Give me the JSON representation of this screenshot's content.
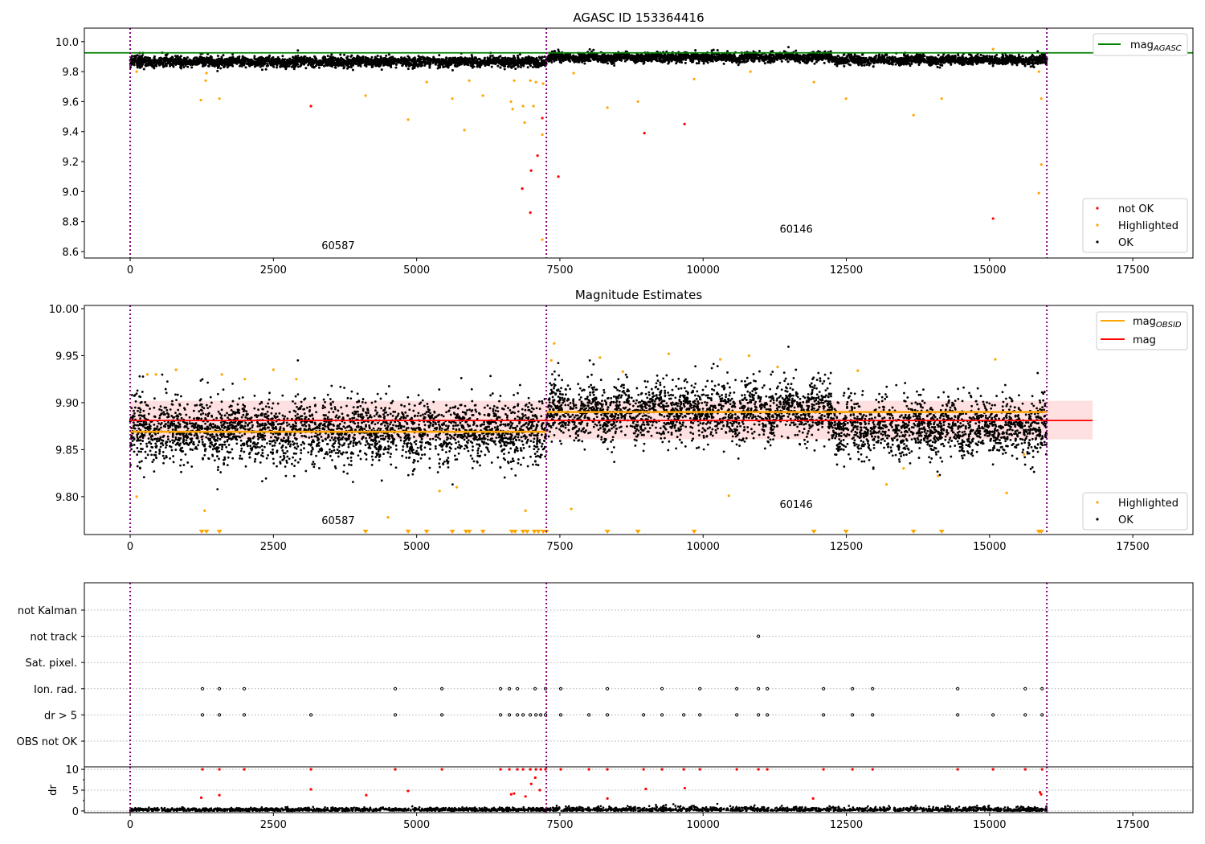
{
  "chart_data": [
    {
      "type": "scatter",
      "title": "AGASC ID 153364416",
      "xlim": [
        -800,
        18550
      ],
      "ylim": [
        8.557,
        10.09
      ],
      "xticks": [
        "0",
        "2500",
        "5000",
        "7500",
        "10000",
        "12500",
        "15000",
        "17500"
      ],
      "xtick_values": [
        0,
        2500,
        5000,
        7500,
        10000,
        12500,
        15000,
        17500
      ],
      "yticks": [
        "8.6",
        "8.8",
        "9.0",
        "9.2",
        "9.4",
        "9.6",
        "9.8",
        "10.0"
      ],
      "ytick_values": [
        8.6,
        8.8,
        9.0,
        9.2,
        9.4,
        9.6,
        9.8,
        10.0
      ],
      "mag_agasc": 9.925,
      "obsid_boundaries": [
        0,
        7264,
        16000
      ],
      "obsid_labels": [
        {
          "text": "60587",
          "x": 3630,
          "y": 8.615
        },
        {
          "text": "60146",
          "x": 11625,
          "y": 8.725
        }
      ],
      "legend_lines": [
        {
          "label": "mag",
          "sub": "AGASC",
          "color": "#008000"
        }
      ],
      "legend_points": [
        {
          "label": "not OK",
          "color": "#ff0000"
        },
        {
          "label": "Highlighted",
          "color": "#ffa500"
        },
        {
          "label": "OK",
          "color": "#000000"
        }
      ],
      "not_ok_points": [
        [
          3155,
          9.57
        ],
        [
          7194,
          9.49
        ],
        [
          7110,
          9.24
        ],
        [
          6998,
          9.14
        ],
        [
          6843,
          9.02
        ],
        [
          6984,
          8.86
        ],
        [
          7474,
          9.1
        ],
        [
          8975,
          9.39
        ],
        [
          9676,
          9.45
        ],
        [
          15061,
          8.82
        ]
      ],
      "highlighted_points": [
        [
          112,
          9.8
        ],
        [
          1234,
          9.61
        ],
        [
          1318,
          9.74
        ],
        [
          1332,
          9.79
        ],
        [
          1557,
          9.62
        ],
        [
          4109,
          9.64
        ],
        [
          4852,
          9.48
        ],
        [
          5175,
          9.73
        ],
        [
          5623,
          9.62
        ],
        [
          5833,
          9.41
        ],
        [
          5918,
          9.74
        ],
        [
          6156,
          9.64
        ],
        [
          6647,
          9.6
        ],
        [
          6675,
          9.55
        ],
        [
          6703,
          9.74
        ],
        [
          6857,
          9.57
        ],
        [
          6885,
          9.46
        ],
        [
          6984,
          9.74
        ],
        [
          7040,
          9.57
        ],
        [
          7082,
          9.73
        ],
        [
          7194,
          9.38
        ],
        [
          7194,
          8.68
        ],
        [
          7208,
          9.72
        ],
        [
          7740,
          9.79
        ],
        [
          8330,
          9.56
        ],
        [
          8863,
          9.6
        ],
        [
          9844,
          9.75
        ],
        [
          10826,
          9.8
        ],
        [
          11934,
          9.73
        ],
        [
          12495,
          9.62
        ],
        [
          13673,
          9.51
        ],
        [
          14164,
          9.62
        ],
        [
          15861,
          9.8
        ],
        [
          15903,
          9.62
        ],
        [
          15903,
          9.18
        ],
        [
          15861,
          8.99
        ],
        [
          15061,
          9.95
        ]
      ],
      "ok_segments": [
        {
          "x": [
            0,
            7264
          ],
          "mean": 9.865,
          "std": 0.018
        },
        {
          "x": [
            7264,
            12300
          ],
          "mean": 9.895,
          "std": 0.016
        },
        {
          "x": [
            12300,
            16000
          ],
          "mean": 9.877,
          "std": 0.016
        }
      ]
    },
    {
      "type": "scatter",
      "title": "Magnitude Estimates",
      "xlim": [
        -800,
        18550
      ],
      "ylim": [
        9.7597,
        10.0034
      ],
      "xticks": [
        "0",
        "2500",
        "5000",
        "7500",
        "10000",
        "12500",
        "15000",
        "17500"
      ],
      "xtick_values": [
        0,
        2500,
        5000,
        7500,
        10000,
        12500,
        15000,
        17500
      ],
      "yticks": [
        "9.80",
        "9.85",
        "9.90",
        "9.95",
        "10.00"
      ],
      "ytick_values": [
        9.8,
        9.85,
        9.9,
        9.95,
        10.0
      ],
      "mag": 9.881,
      "mag_band": [
        9.861,
        9.902
      ],
      "mag_range_x": [
        0,
        16800
      ],
      "mag_obsid": [
        {
          "x": [
            0,
            7264
          ],
          "value": 9.869
        },
        {
          "x": [
            7264,
            16000
          ],
          "value": 9.89
        }
      ],
      "obsid_labels": [
        {
          "text": "60587",
          "x": 3630,
          "y": 9.771
        },
        {
          "text": "60146",
          "x": 11625,
          "y": 9.788
        }
      ],
      "legend_lines": [
        {
          "label": "mag",
          "sub": "OBSID",
          "color": "#ffa500"
        },
        {
          "label": "mag",
          "sub": "",
          "color": "#ff0000"
        }
      ],
      "legend_points": [
        {
          "label": "Highlighted",
          "color": "#ffa500"
        },
        {
          "label": "OK",
          "color": "#000000"
        }
      ],
      "below_range_markers": [
        1248,
        1332,
        1557,
        4109,
        4852,
        5175,
        5623,
        5862,
        5918,
        6156,
        6661,
        6717,
        6857,
        6928,
        7054,
        7124,
        7208,
        7264,
        8330,
        8863,
        9844,
        11934,
        12495,
        13673,
        14164,
        15861,
        15903
      ],
      "highlighted_points": [
        [
          112,
          9.8
        ],
        [
          300,
          9.93
        ],
        [
          450,
          9.93
        ],
        [
          800,
          9.935
        ],
        [
          1300,
          9.785
        ],
        [
          1600,
          9.93
        ],
        [
          2000,
          9.925
        ],
        [
          2500,
          9.935
        ],
        [
          2900,
          9.925
        ],
        [
          4500,
          9.778
        ],
        [
          5400,
          9.806
        ],
        [
          5700,
          9.81
        ],
        [
          6900,
          9.785
        ],
        [
          7350,
          9.945
        ],
        [
          7400,
          9.963
        ],
        [
          7700,
          9.787
        ],
        [
          8200,
          9.948
        ],
        [
          8600,
          9.933
        ],
        [
          9400,
          9.952
        ],
        [
          10300,
          9.946
        ],
        [
          10450,
          9.801
        ],
        [
          10800,
          9.95
        ],
        [
          11300,
          9.938
        ],
        [
          12700,
          9.934
        ],
        [
          13200,
          9.813
        ],
        [
          13500,
          9.83
        ],
        [
          14100,
          9.822
        ],
        [
          15100,
          9.946
        ],
        [
          15300,
          9.804
        ],
        [
          15600,
          9.845
        ]
      ]
    },
    {
      "type": "scatter",
      "xlim": [
        -800,
        18550
      ],
      "categories": [
        "OBS not OK",
        "dr > 5",
        "Ion. rad.",
        "Sat. pixel.",
        "not track",
        "not Kalman"
      ],
      "flag_points": {
        "not track": [
          10966
        ],
        "Ion. rad.": [
          1262,
          1557,
          1991,
          4627,
          5441,
          6464,
          6619,
          6759,
          7067,
          7249,
          7515,
          8329,
          9283,
          9943,
          10588,
          10966,
          11120,
          12102,
          12607,
          12958,
          14444,
          15623,
          15917
        ],
        "dr > 5": [
          1262,
          1557,
          1991,
          3155,
          4627,
          5441,
          6464,
          6619,
          6759,
          6857,
          6984,
          7082,
          7166,
          7249,
          7515,
          8007,
          8329,
          8961,
          9283,
          9662,
          9943,
          10588,
          10966,
          11120,
          12102,
          12607,
          12958,
          14444,
          15061,
          15623,
          15917
        ]
      }
    },
    {
      "type": "scatter",
      "ylabel": "dr",
      "xlim": [
        -800,
        18550
      ],
      "ylim": [
        -0.4,
        10.6
      ],
      "xticks": [
        "0",
        "2500",
        "5000",
        "7500",
        "10000",
        "12500",
        "15000",
        "17500"
      ],
      "xtick_values": [
        0,
        2500,
        5000,
        7500,
        10000,
        12500,
        15000,
        17500
      ],
      "yticks": [
        "0",
        "5",
        "10"
      ],
      "ytick_values": [
        0,
        5,
        10
      ],
      "red_points_extra": [
        [
          1240,
          3.2
        ],
        [
          1557,
          3.8
        ],
        [
          3155,
          5.2
        ],
        [
          4120,
          3.8
        ],
        [
          4850,
          4.8
        ],
        [
          6650,
          4.0
        ],
        [
          6700,
          4.2
        ],
        [
          6900,
          3.5
        ],
        [
          7000,
          6.5
        ],
        [
          7070,
          8.0
        ],
        [
          7150,
          5.0
        ],
        [
          8330,
          3.0
        ],
        [
          9000,
          5.3
        ],
        [
          9680,
          5.5
        ],
        [
          11920,
          3.0
        ],
        [
          15880,
          4.5
        ],
        [
          15900,
          4.0
        ]
      ],
      "ok_dr_mean": 0.3
    }
  ]
}
